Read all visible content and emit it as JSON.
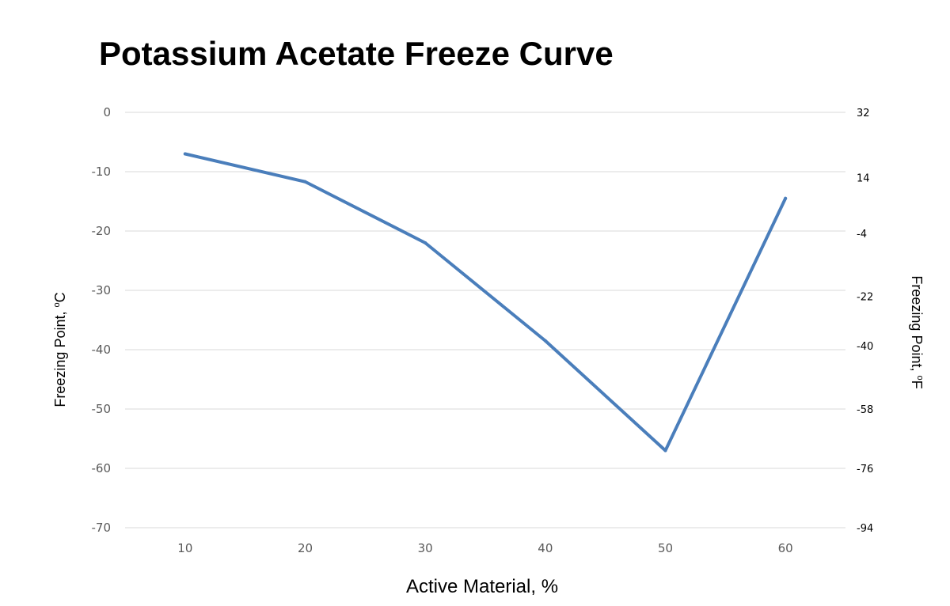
{
  "chart_data": {
    "type": "line",
    "title": "Potassium Acetate Freeze Curve",
    "xlabel": "Active Material, %",
    "ylabel": {
      "prefix": "Freezing Point, ",
      "sup": "o",
      "suffix": "C"
    },
    "y2label": {
      "prefix": "Freezing Point, ",
      "sup": "o",
      "suffix": "F"
    },
    "categories": [
      "10",
      "20",
      "30",
      "40",
      "50",
      "60"
    ],
    "x": [
      10,
      20,
      30,
      40,
      50,
      60
    ],
    "series": [
      {
        "values": [
          -7,
          -11.7,
          -22,
          -38.5,
          -57,
          -14.5
        ],
        "color": "#4a7ebb"
      }
    ],
    "ylim": [
      -70,
      0
    ],
    "yticks": [
      "0",
      "-10",
      "-20",
      "-30",
      "-40",
      "-50",
      "-60",
      "-70"
    ],
    "y2ticks": [
      {
        "label": "32",
        "c": 0
      },
      {
        "label": "14",
        "c": -11
      },
      {
        "label": "-4",
        "c": -20.4
      },
      {
        "label": "-22",
        "c": -31
      },
      {
        "label": "-40",
        "c": -39.3
      },
      {
        "label": "-58",
        "c": -50
      },
      {
        "label": "-76",
        "c": -60
      },
      {
        "label": "-94",
        "c": -70
      }
    ],
    "grid": true,
    "legend": "none"
  }
}
